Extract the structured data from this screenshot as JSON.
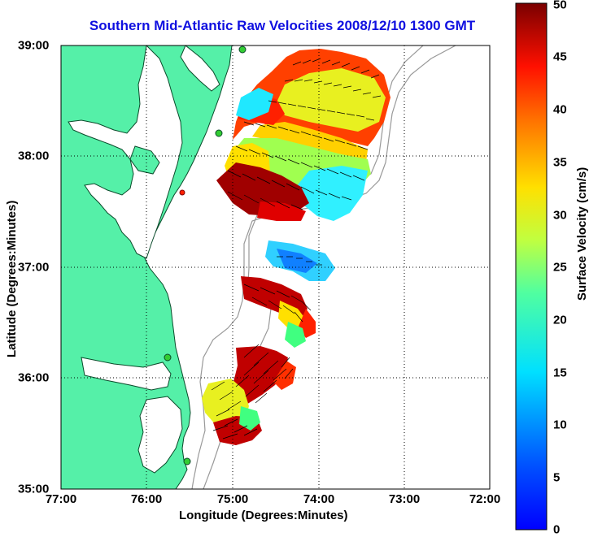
{
  "map": {
    "title": "Southern Mid-Atlantic Raw Velocities 2008/12/10 1300 GMT",
    "xlabel": "Longitude (Degrees:Minutes)",
    "ylabel": "Latitude (Degrees:Minutes)",
    "x_ticks": [
      "77:00",
      "76:00",
      "75:00",
      "74:00",
      "73:00",
      "72:00"
    ],
    "y_ticks": [
      "39:00",
      "38:00",
      "37:00",
      "36:00",
      "35:00"
    ],
    "land_color": "#55f0a8",
    "grid": "dotted"
  },
  "colorbar": {
    "label": "Surface Velocity (cm/s)",
    "ticks": [
      "50",
      "45",
      "40",
      "35",
      "30",
      "25",
      "20",
      "15",
      "10",
      "5",
      "0"
    ],
    "range": [
      0,
      50
    ]
  }
}
